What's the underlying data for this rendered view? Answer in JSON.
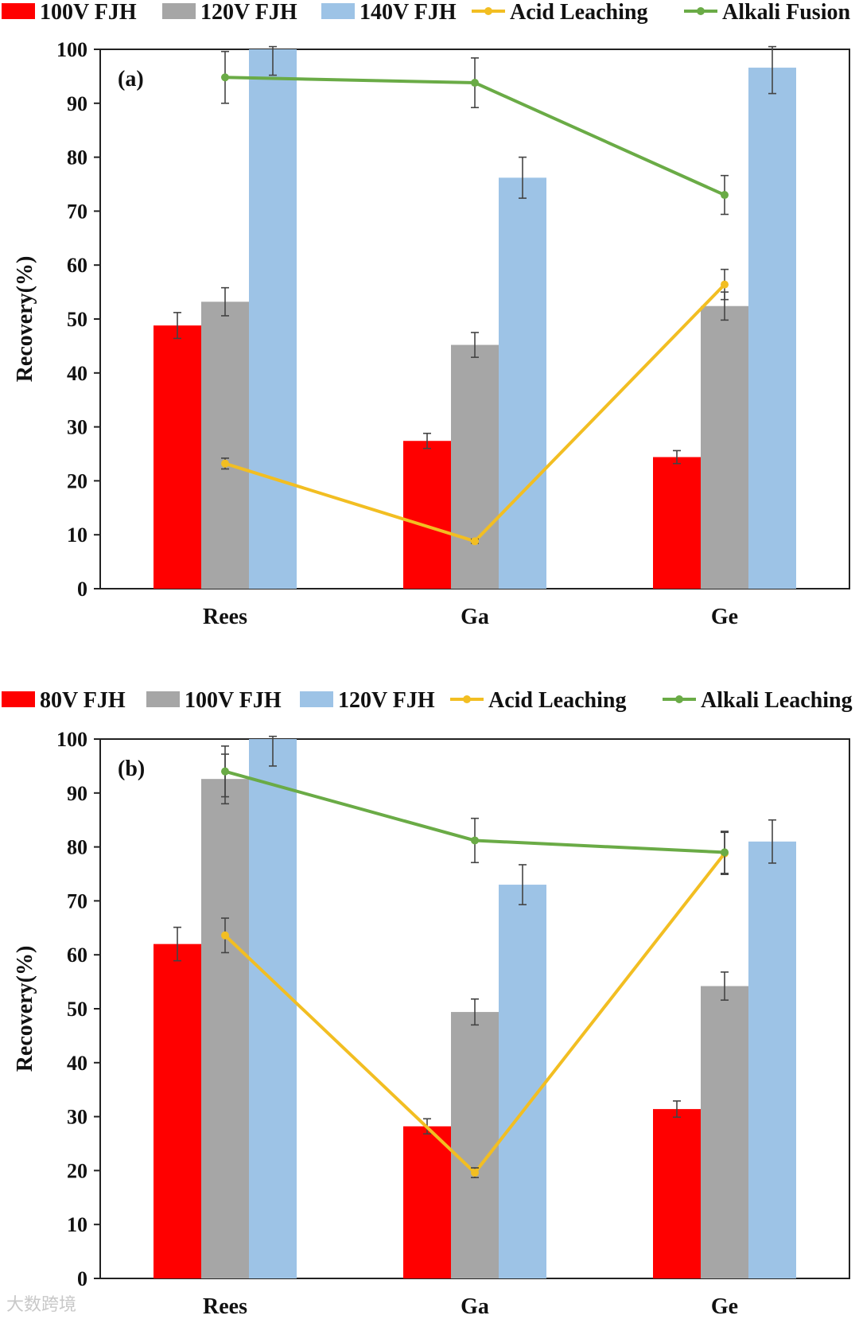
{
  "colors": {
    "red": "#ff0000",
    "gray": "#a6a6a6",
    "blue": "#9dc3e6",
    "yellow": "#f2be22",
    "green": "#6aab46",
    "axis": "#222222",
    "errbar": "#444444"
  },
  "watermark": "大数跨境",
  "chart_data": [
    {
      "type": "bar",
      "panel_label": "(a)",
      "categories": [
        "Rees",
        "Ga",
        "Ge"
      ],
      "ylabel": "Recovery(%)",
      "ylim": [
        0,
        100
      ],
      "yticks": [
        0,
        10,
        20,
        30,
        40,
        50,
        60,
        70,
        80,
        90,
        100
      ],
      "legend_position": "top",
      "series": [
        {
          "name": "100V FJH",
          "kind": "bar",
          "color": "#ff0000",
          "values": [
            48.8,
            27.4,
            24.4
          ],
          "errors": [
            2.4,
            1.4,
            1.2
          ]
        },
        {
          "name": "120V FJH",
          "kind": "bar",
          "color": "#a6a6a6",
          "values": [
            53.2,
            45.2,
            52.4
          ],
          "errors": [
            2.6,
            2.3,
            2.6
          ]
        },
        {
          "name": "140V FJH",
          "kind": "bar",
          "color": "#9dc3e6",
          "values": [
            100,
            76.2,
            96.6
          ],
          "errors": [
            4.8,
            3.8,
            4.8
          ]
        },
        {
          "name": "Acid Leaching",
          "kind": "line",
          "color": "#f2be22",
          "values": [
            23.2,
            8.8,
            56.4
          ],
          "errors": [
            1.0,
            0.4,
            2.8
          ]
        },
        {
          "name": "Alkali Fusion",
          "kind": "line",
          "color": "#6aab46",
          "values": [
            94.8,
            93.8,
            73.0
          ],
          "errors": [
            4.8,
            4.6,
            3.6
          ]
        }
      ]
    },
    {
      "type": "bar",
      "panel_label": "(b)",
      "categories": [
        "Rees",
        "Ga",
        "Ge"
      ],
      "ylabel": "Recovery(%)",
      "ylim": [
        0,
        100
      ],
      "yticks": [
        0,
        10,
        20,
        30,
        40,
        50,
        60,
        70,
        80,
        90,
        100
      ],
      "legend_position": "top",
      "series": [
        {
          "name": "80V FJH",
          "kind": "bar",
          "color": "#ff0000",
          "values": [
            62.0,
            28.2,
            31.4
          ],
          "errors": [
            3.1,
            1.4,
            1.5
          ]
        },
        {
          "name": "100V FJH",
          "kind": "bar",
          "color": "#a6a6a6",
          "values": [
            92.6,
            49.4,
            54.2
          ],
          "errors": [
            4.6,
            2.4,
            2.6
          ]
        },
        {
          "name": "120V FJH",
          "kind": "bar",
          "color": "#9dc3e6",
          "values": [
            100,
            73.0,
            81.0
          ],
          "errors": [
            5.0,
            3.7,
            4.0
          ]
        },
        {
          "name": "Acid Leaching",
          "kind": "line",
          "color": "#f2be22",
          "values": [
            63.6,
            19.6,
            78.8
          ],
          "errors": [
            3.2,
            0.9,
            3.9
          ]
        },
        {
          "name": "Alkali Leaching",
          "kind": "line",
          "color": "#6aab46",
          "values": [
            94.0,
            81.2,
            79.0
          ],
          "errors": [
            4.7,
            4.1,
            3.9
          ]
        }
      ]
    }
  ]
}
